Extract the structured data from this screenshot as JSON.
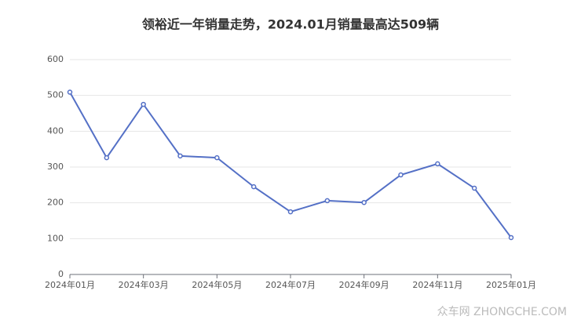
{
  "chart_data": {
    "type": "line",
    "title": "领裕近一年销量走势，2024.01月销量最高达509辆",
    "categories": [
      "2024年01月",
      null,
      "2024年03月",
      null,
      "2024年05月",
      null,
      "2024年07月",
      null,
      "2024年09月",
      null,
      "2024年11月",
      null,
      "2025年01月"
    ],
    "values": [
      509,
      326,
      475,
      331,
      326,
      245,
      175,
      206,
      201,
      278,
      309,
      241,
      103
    ],
    "color": "#5470c6",
    "ylim": [
      0,
      600
    ],
    "yticks": [
      0,
      100,
      200,
      300,
      400,
      500,
      600
    ],
    "grid": true,
    "watermark": "众车网 ZHONGCHE.COM"
  }
}
